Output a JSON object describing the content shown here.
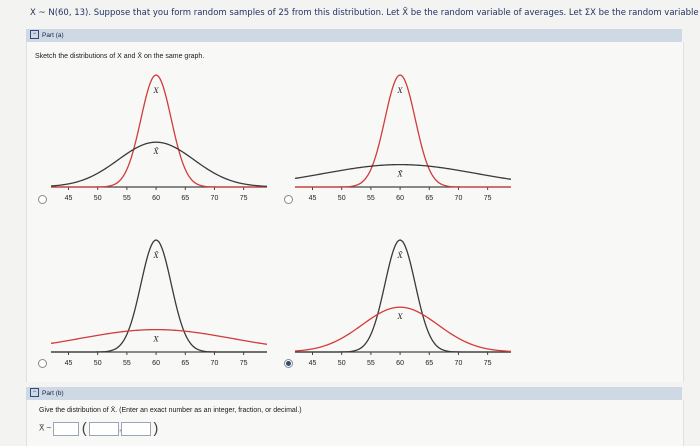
{
  "problem_statement": "X ~ N(60, 13). Suppose that you form random samples of 25 from this distribution. Let X̄ be the random variable of averages. Let ΣX be the random variable of sums.",
  "part_a": {
    "label": "Part (a)",
    "instruction": "Sketch the distributions of X and X̄ on the same graph.",
    "curve_labels": {
      "x": "X",
      "xbar": "X̄"
    },
    "colors": {
      "red_curve": "#d23b3b",
      "dark_curve": "#3a3a3a",
      "axis": "#444444"
    },
    "x_ticks": [
      "45",
      "50",
      "55",
      "60",
      "65",
      "70",
      "75"
    ],
    "options": [
      {
        "id": "A",
        "selected": false
      },
      {
        "id": "B",
        "selected": false
      },
      {
        "id": "C",
        "selected": false
      },
      {
        "id": "D",
        "selected": true
      }
    ]
  },
  "part_b": {
    "label": "Part (b)",
    "instruction": "Give the distribution of X̄. (Enter an exact number as an integer, fraction, or decimal.)",
    "prefix": "X̄ ~",
    "comma": ","
  },
  "chart_data": [
    {
      "type": "line",
      "xlim": [
        42,
        79
      ],
      "x_ticks": [
        45,
        50,
        55,
        60,
        65,
        70,
        75
      ],
      "series": [
        {
          "label": "X",
          "color": "#d23b3b",
          "mean": 60,
          "sd": 2.6,
          "relative_peak": 1.0
        },
        {
          "label": "X̄",
          "color": "#3a3a3a",
          "mean": 60,
          "sd": 6.5,
          "relative_peak": 0.4
        }
      ]
    },
    {
      "type": "line",
      "xlim": [
        42,
        79
      ],
      "x_ticks": [
        45,
        50,
        55,
        60,
        65,
        70,
        75
      ],
      "series": [
        {
          "label": "X",
          "color": "#d23b3b",
          "mean": 60,
          "sd": 2.6,
          "relative_peak": 1.0
        },
        {
          "label": "X̄",
          "color": "#3a3a3a",
          "mean": 60,
          "sd": 13,
          "relative_peak": 0.2
        }
      ]
    },
    {
      "type": "line",
      "xlim": [
        42,
        79
      ],
      "x_ticks": [
        45,
        50,
        55,
        60,
        65,
        70,
        75
      ],
      "series": [
        {
          "label": "X̄",
          "color": "#3a3a3a",
          "mean": 60,
          "sd": 2.6,
          "relative_peak": 1.0
        },
        {
          "label": "X",
          "color": "#d23b3b",
          "mean": 60,
          "sd": 13,
          "relative_peak": 0.2
        }
      ]
    },
    {
      "type": "line",
      "xlim": [
        42,
        79
      ],
      "x_ticks": [
        45,
        50,
        55,
        60,
        65,
        70,
        75
      ],
      "series": [
        {
          "label": "X̄",
          "color": "#3a3a3a",
          "mean": 60,
          "sd": 2.6,
          "relative_peak": 1.0
        },
        {
          "label": "X",
          "color": "#d23b3b",
          "mean": 60,
          "sd": 6.5,
          "relative_peak": 0.4
        }
      ]
    }
  ]
}
